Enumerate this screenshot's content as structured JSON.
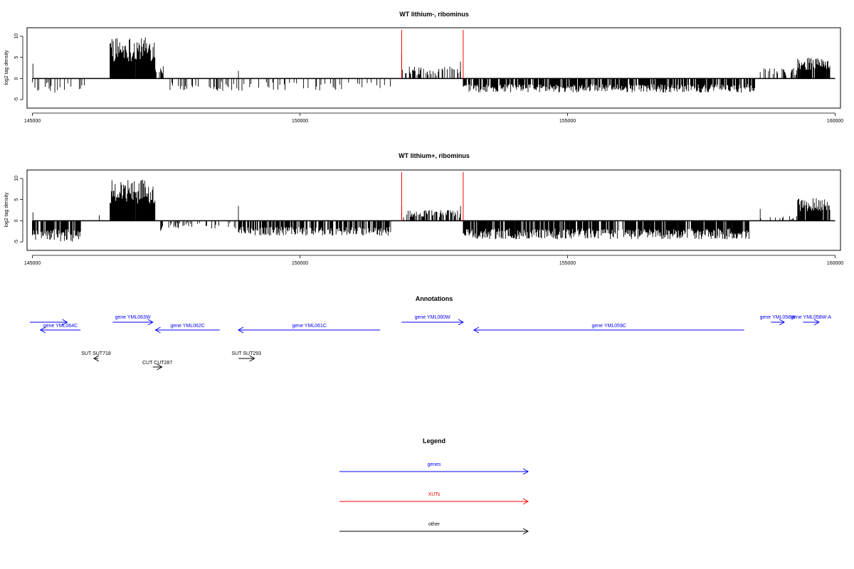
{
  "colors": {
    "gene": "#0000ff",
    "xut": "#ff0000",
    "other": "#000000",
    "bars": "#000000"
  },
  "chart_data": [
    {
      "type": "bar",
      "title": "WT lithium-, ribominus",
      "ylabel": "log2 tag density",
      "xlim": [
        144900,
        160100
      ],
      "ylim": [
        -7,
        12
      ],
      "xticks": [
        145000,
        150000,
        155000,
        160000
      ],
      "yticks": [
        -5,
        0,
        5,
        10
      ],
      "grid": false,
      "regions": [
        {
          "start": 145000,
          "end": 146000,
          "shape": "sparse",
          "amp": -3.5,
          "density": 0.35
        },
        {
          "start": 146450,
          "end": 147300,
          "shape": "dense",
          "amp": 9,
          "density": 1.0
        },
        {
          "start": 147300,
          "end": 147450,
          "shape": "sparse",
          "amp": 3,
          "density": 0.5
        },
        {
          "start": 147500,
          "end": 151700,
          "shape": "sparse",
          "amp": -3,
          "density": 0.25
        },
        {
          "start": 151900,
          "end": 153000,
          "shape": "sparse",
          "amp": 2.8,
          "density": 0.45
        },
        {
          "start": 153050,
          "end": 158500,
          "shape": "dense",
          "amp": -3,
          "density": 0.8
        },
        {
          "start": 158600,
          "end": 159300,
          "shape": "sparse",
          "amp": 2.5,
          "density": 0.3
        },
        {
          "start": 159300,
          "end": 159900,
          "shape": "dense",
          "amp": 4.5,
          "density": 0.9
        }
      ],
      "spikes": [
        {
          "x": 145010,
          "y": 3.5
        },
        {
          "x": 148850,
          "y": 1.8
        },
        {
          "x": 151900,
          "y": 6
        },
        {
          "x": 153000,
          "y": 4
        },
        {
          "x": 158600,
          "y": 1.5
        }
      ],
      "red_markers": [
        151900,
        153050
      ]
    },
    {
      "type": "bar",
      "title": "WT lithium+, ribominus",
      "ylabel": "log2 tag density",
      "xlim": [
        144900,
        160100
      ],
      "ylim": [
        -7,
        12
      ],
      "xticks": [
        145000,
        150000,
        155000,
        160000
      ],
      "yticks": [
        -5,
        0,
        5,
        10
      ],
      "grid": false,
      "regions": [
        {
          "start": 145000,
          "end": 145900,
          "shape": "dense",
          "amp": -4.5,
          "density": 0.9
        },
        {
          "start": 146450,
          "end": 147300,
          "shape": "dense",
          "amp": 9,
          "density": 1.0
        },
        {
          "start": 147300,
          "end": 147450,
          "shape": "sparse",
          "amp": -2.5,
          "density": 0.5
        },
        {
          "start": 147500,
          "end": 148800,
          "shape": "sparse",
          "amp": -2,
          "density": 0.2
        },
        {
          "start": 148850,
          "end": 151700,
          "shape": "dense",
          "amp": -3.2,
          "density": 0.75
        },
        {
          "start": 151900,
          "end": 153000,
          "shape": "sparse",
          "amp": 2.6,
          "density": 0.55
        },
        {
          "start": 153050,
          "end": 158400,
          "shape": "dense",
          "amp": -4,
          "density": 0.9
        },
        {
          "start": 158500,
          "end": 159300,
          "shape": "sparse",
          "amp": 1.2,
          "density": 0.2
        },
        {
          "start": 159300,
          "end": 159900,
          "shape": "dense",
          "amp": 5,
          "density": 0.95
        }
      ],
      "spikes": [
        {
          "x": 145010,
          "y": 2
        },
        {
          "x": 146250,
          "y": 1.3
        },
        {
          "x": 148850,
          "y": 3.5
        },
        {
          "x": 151900,
          "y": 3.5
        },
        {
          "x": 153000,
          "y": 3.5
        },
        {
          "x": 158600,
          "y": 2.8
        }
      ],
      "red_markers": [
        151900,
        153050
      ]
    }
  ],
  "annotations": {
    "title": "Annotations",
    "items": [
      {
        "label": "",
        "kind": "gene",
        "start": 144950,
        "end": 145650,
        "dir": "+",
        "row": 0
      },
      {
        "label": "gene YML064C",
        "kind": "gene",
        "start": 145150,
        "end": 145900,
        "dir": "-",
        "row": 1
      },
      {
        "label": "gene YML063W",
        "kind": "gene",
        "start": 146500,
        "end": 147250,
        "dir": "+",
        "row": 0
      },
      {
        "label": "gene YML062C",
        "kind": "gene",
        "start": 147300,
        "end": 148500,
        "dir": "-",
        "row": 1
      },
      {
        "label": "gene YML061C",
        "kind": "gene",
        "start": 148850,
        "end": 151500,
        "dir": "-",
        "row": 1
      },
      {
        "label": "gene YML060W",
        "kind": "gene",
        "start": 151900,
        "end": 153050,
        "dir": "+",
        "row": 0
      },
      {
        "label": "gene YML059C",
        "kind": "gene",
        "start": 153250,
        "end": 158300,
        "dir": "-",
        "row": 1
      },
      {
        "label": "gene YML058W",
        "kind": "gene",
        "start": 158800,
        "end": 159050,
        "dir": "+",
        "row": 0
      },
      {
        "label": "gene YML058W-A",
        "kind": "gene",
        "start": 159400,
        "end": 159700,
        "dir": "+",
        "row": 0
      },
      {
        "label": "SUT SUT718",
        "kind": "other",
        "start": 146150,
        "end": 146230,
        "dir": "-",
        "row": 2
      },
      {
        "label": "CUT CUT287",
        "kind": "other",
        "start": 147250,
        "end": 147420,
        "dir": "+",
        "row": 3
      },
      {
        "label": "SUT SUT293",
        "kind": "other",
        "start": 148850,
        "end": 149150,
        "dir": "+",
        "row": 2
      }
    ]
  },
  "legend": {
    "title": "Legend",
    "items": [
      {
        "label": "genes",
        "kind": "gene"
      },
      {
        "label": "XUTs",
        "kind": "xut"
      },
      {
        "label": "other",
        "kind": "other"
      }
    ]
  }
}
